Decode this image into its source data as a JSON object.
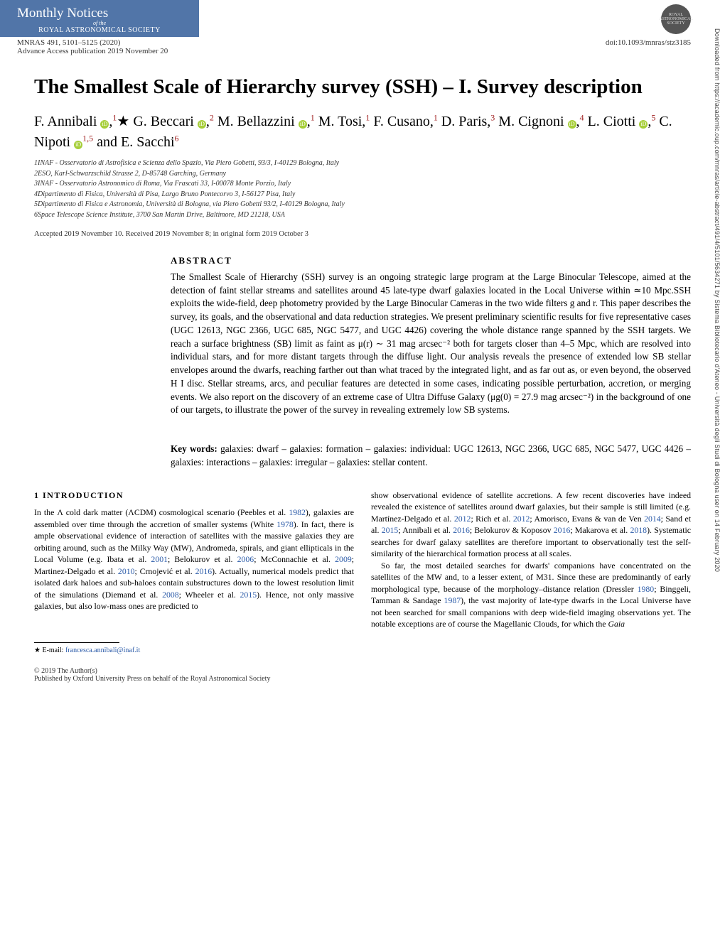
{
  "journal": {
    "masthead_line1": "Monthly Notices",
    "masthead_line2": "of the",
    "masthead_line3": "ROYAL ASTRONOMICAL SOCIETY",
    "citation": "MNRAS 491, 5101–5125 (2020)",
    "advance": "Advance Access publication 2019 November 20",
    "doi": "doi:10.1093/mnras/stz3185",
    "badge_text": "ROYAL ASTRONOMICAL SOCIETY"
  },
  "title": "The Smallest Scale of Hierarchy survey (SSH) – I. Survey description",
  "authors_html": "F. Annibali <span class='orcid'>iD</span>,<span class='sup'>1</span>★ G. Beccari <span class='orcid'>iD</span>,<span class='sup'>2</span> M. Bellazzini <span class='orcid'>iD</span>,<span class='sup'>1</span> M. Tosi,<span class='sup'>1</span> F. Cusano,<span class='sup'>1</span> D. Paris,<span class='sup'>3</span> M. Cignoni <span class='orcid'>iD</span>,<span class='sup'>4</span> L. Ciotti <span class='orcid'>iD</span>,<span class='sup'>5</span> C. Nipoti <span class='orcid'>iD</span><span class='sup'>1,5</span> and E. Sacchi<span class='sup'>6</span>",
  "affiliations": [
    "1INAF - Osservatorio di Astrofisica e Scienza dello Spazio, Via Piero Gobetti, 93/3, I-40129 Bologna, Italy",
    "2ESO, Karl-Schwarzschild Strasse 2, D-85748 Garching, Germany",
    "3INAF - Osservatorio Astronomico di Roma, Via Frascati 33, I-00078 Monte Porzio, Italy",
    "4Dipartimento di Fisica, Università di Pisa, Largo Bruno Pontecorvo 3, I-56127 Pisa, Italy",
    "5Dipartimento di Fisica e Astronomia, Università di Bologna, via Piero Gobetti 93/2, I-40129 Bologna, Italy",
    "6Space Telescope Science Institute, 3700 San Martin Drive, Baltimore, MD 21218, USA"
  ],
  "dates": "Accepted 2019 November 10. Received 2019 November 8; in original form 2019 October 3",
  "abstract": {
    "heading": "ABSTRACT",
    "text": "The Smallest Scale of Hierarchy (SSH) survey is an ongoing strategic large program at the Large Binocular Telescope, aimed at the detection of faint stellar streams and satellites around 45 late-type dwarf galaxies located in the Local Universe within ≃10 Mpc.SSH exploits the wide-field, deep photometry provided by the Large Binocular Cameras in the two wide filters g and r. This paper describes the survey, its goals, and the observational and data reduction strategies. We present preliminary scientific results for five representative cases (UGC 12613, NGC 2366, UGC 685, NGC 5477, and UGC 4426) covering the whole distance range spanned by the SSH targets. We reach a surface brightness (SB) limit as faint as μ(r) ∼ 31 mag arcsec⁻² both for targets closer than 4–5 Mpc, which are resolved into individual stars, and for more distant targets through the diffuse light. Our analysis reveals the presence of extended low SB stellar envelopes around the dwarfs, reaching farther out than what traced by the integrated light, and as far out as, or even beyond, the observed H I disc. Stellar streams, arcs, and peculiar features are detected in some cases, indicating possible perturbation, accretion, or merging events. We also report on the discovery of an extreme case of Ultra Diffuse Galaxy (μg(0) = 27.9 mag arcsec⁻²) in the background of one of our targets, to illustrate the power of the survey in revealing extremely low SB systems."
  },
  "keywords": {
    "label": "Key words:",
    "text": " galaxies: dwarf – galaxies: formation – galaxies: individual: UGC 12613, NGC 2366, UGC 685, NGC 5477, UGC 4426 – galaxies: interactions – galaxies: irregular – galaxies: stellar content."
  },
  "intro": {
    "heading": "1 INTRODUCTION",
    "col1": "In the Λ cold dark matter (ΛCDM) cosmological scenario (Peebles et al. <span class='citelink'>1982</span>), galaxies are assembled over time through the accretion of smaller systems (White <span class='citelink'>1978</span>). In fact, there is ample observational evidence of interaction of satellites with the massive galaxies they are orbiting around, such as the Milky Way (MW), Andromeda, spirals, and giant ellipticals in the Local Volume (e.g. Ibata et al. <span class='citelink'>2001</span>; Belokurov et al. <span class='citelink'>2006</span>; McConnachie et al. <span class='citelink'>2009</span>; Martinez-Delgado et al. <span class='citelink'>2010</span>; Crnojević et al. <span class='citelink'>2016</span>). Actually, numerical models predict that isolated dark haloes and sub-haloes contain substructures down to the lowest resolution limit of the simulations (Diemand et al. <span class='citelink'>2008</span>; Wheeler et al. <span class='citelink'>2015</span>). Hence, not only massive galaxies, but also low-mass ones are predicted to",
    "col2a": "show observational evidence of satellite accretions. A few recent discoveries have indeed revealed the existence of satellites around dwarf galaxies, but their sample is still limited (e.g. Martínez-Delgado et al. <span class='citelink'>2012</span>; Rich et al. <span class='citelink'>2012</span>; Amorisco, Evans  & van de Ven <span class='citelink'>2014</span>; Sand et al. <span class='citelink'>2015</span>; Annibali et al. <span class='citelink'>2016</span>; Belokurov & Koposov <span class='citelink'>2016</span>; Makarova et al. <span class='citelink'>2018</span>). Systematic searches for dwarf galaxy satellites are therefore important to observationally test the self-similarity of the hierarchical formation process at all scales.",
    "col2b": "So far, the most detailed searches for dwarfs' companions have concentrated on the satellites of the MW and, to a lesser extent, of M31. Since these are predominantly of early morphological type, because of the morphology–distance relation (Dressler <span class='citelink'>1980</span>; Binggeli, Tamman & Sandage <span class='citelink'>1987</span>), the vast majority of late-type dwarfs in the Local Universe have not been searched for small companions with deep wide-field imaging observations yet. The notable exceptions are of course the Magellanic Clouds, for which the <i>Gaia</i>"
  },
  "footnote": {
    "marker": "★",
    "text": "E-mail: ",
    "email": "francesca.annibali@inaf.it"
  },
  "copyright": {
    "line1": "© 2019 The Author(s)",
    "line2": "Published by Oxford University Press on behalf of the Royal Astronomical Society"
  },
  "sidebar": "Downloaded from https://academic.oup.com/mnras/article-abstract/491/4/5101/5634271 by Sistema Bibliotecario d'Ateneo - Università degli Studi di Bologna user on 14 February 2020",
  "colors": {
    "header_bg": "#5175a8",
    "link": "#2a5aa8",
    "sup": "#a02020",
    "orcid": "#a6ce39"
  }
}
